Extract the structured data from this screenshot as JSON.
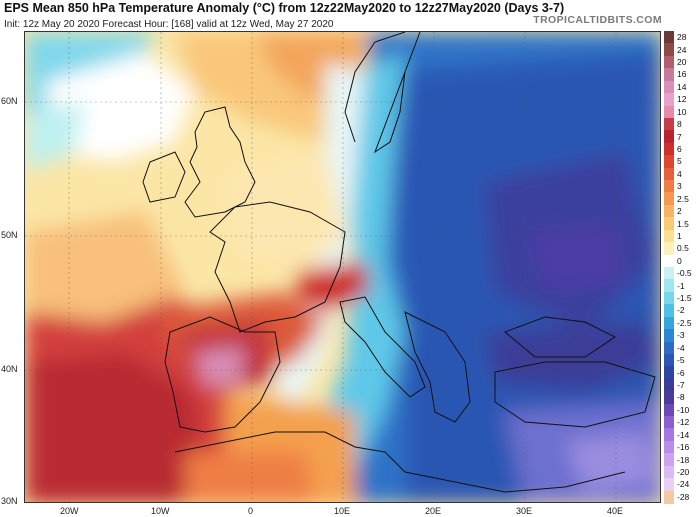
{
  "header": {
    "title": "EPS Mean 850 hPa Temperature Anomaly (°C) from 12z22May2020 to 12z27May2020 (Days 3-7)",
    "subtitle": "Init: 12z May 20 2020   Forecast Hour: [168]   valid at 12z Wed, May 27 2020",
    "brand": "TROPICALTIDBITS.COM"
  },
  "axes": {
    "lat_labels": [
      "60N",
      "50N",
      "40N",
      "30N"
    ],
    "lon_labels": [
      "20W",
      "10W",
      "0",
      "10E",
      "20E",
      "30E",
      "40E"
    ]
  },
  "scale": {
    "labels": [
      "28",
      "24",
      "20",
      "16",
      "14",
      "12",
      "10",
      "8",
      "7",
      "6",
      "5",
      "4",
      "3",
      "2.5",
      "2",
      "1.5",
      "1",
      "0.5",
      "0",
      "-0.5",
      "-1",
      "-1.5",
      "-2",
      "-2.5",
      "-3",
      "-4",
      "-5",
      "-6",
      "-7",
      "-8",
      "-10",
      "-12",
      "-14",
      "-16",
      "-18",
      "-20",
      "-24",
      "-28"
    ],
    "colors": [
      "#6b3a36",
      "#8d4a45",
      "#b25e6c",
      "#c77a9a",
      "#d98fb8",
      "#e6a2cc",
      "#e98aa8",
      "#c73b4a",
      "#b8232d",
      "#cf2f2b",
      "#dc472f",
      "#e8603a",
      "#ef7e45",
      "#f4994f",
      "#f7b35f",
      "#f9ca74",
      "#fbe08e",
      "#fdf0bd",
      "#ffffff",
      "#c9f1f1",
      "#9fe6ee",
      "#76d6ea",
      "#50c0e6",
      "#33a6df",
      "#2a86d1",
      "#2d6cc4",
      "#2b56b2",
      "#2c45a1",
      "#3a3c97",
      "#4b3c9a",
      "#6d49b8",
      "#8a5fd1",
      "#a476e0",
      "#bb8de8",
      "#cda3ee",
      "#dcb9f1",
      "#e8cff5",
      "#f4c9a2"
    ]
  }
}
